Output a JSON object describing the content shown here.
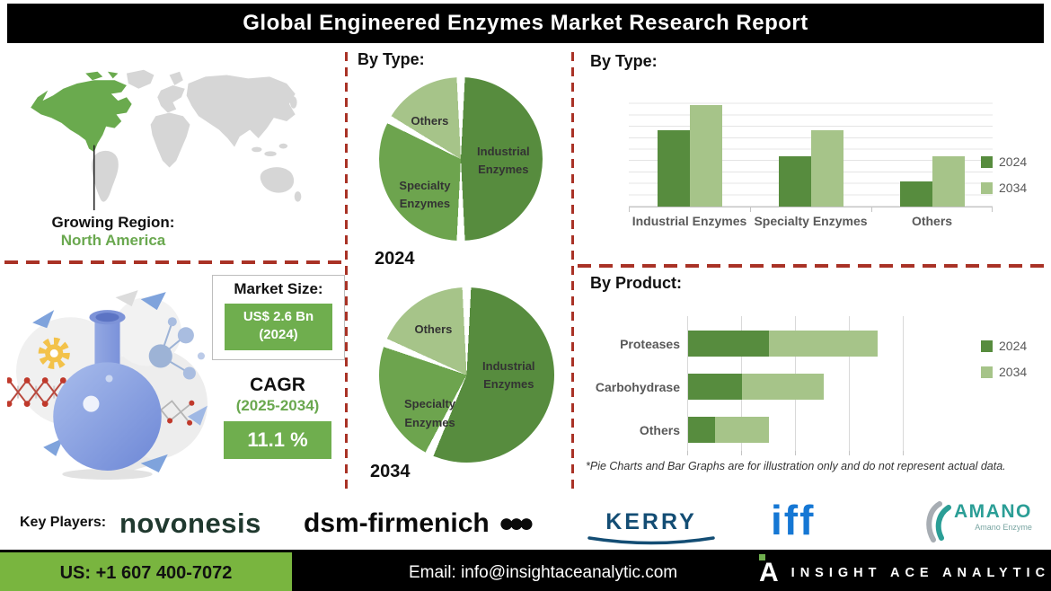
{
  "header": {
    "title": "Global Engineered Enzymes Market Research Report"
  },
  "map_section": {
    "growing_region_label": "Growing Region:",
    "growing_region_value": "North America"
  },
  "market_stats": {
    "market_size_label": "Market Size:",
    "market_size_value": "US$ 2.6 Bn",
    "market_size_year": "(2024)",
    "cagr_label": "CAGR",
    "cagr_period": "(2025-2034)",
    "cagr_value": "11.1 %"
  },
  "chart_data": [
    {
      "type": "pie",
      "title": "By Type:",
      "year_label": "2024",
      "labels": [
        "Industrial Enzymes",
        "Specialty Enzymes",
        "Others"
      ],
      "values": [
        50,
        33,
        17
      ],
      "colors": [
        "#578c3e",
        "#6da44e",
        "#a6c489"
      ]
    },
    {
      "type": "pie",
      "title": "By Type:",
      "year_label": "2034",
      "labels": [
        "Industrial Enzymes",
        "Specialty Enzymes",
        "Others"
      ],
      "values": [
        57,
        24,
        19
      ],
      "colors": [
        "#578c3e",
        "#6da44e",
        "#a6c489"
      ]
    },
    {
      "type": "bar",
      "title": "By Type:",
      "categories": [
        "Industrial Enzymes",
        "Specialty Enzymes",
        "Others"
      ],
      "series": [
        {
          "name": "2024",
          "values": [
            6.7,
            4.4,
            2.2
          ],
          "color": "#578c3e"
        },
        {
          "name": "2034",
          "values": [
            8.9,
            6.7,
            4.4
          ],
          "color": "#a6c489"
        }
      ],
      "ylim": [
        0,
        10
      ],
      "grid": true,
      "axis_labels_shown": false,
      "legend_position": "right"
    },
    {
      "type": "bar",
      "orientation": "horizontal",
      "stacked": true,
      "title": "By Product:",
      "categories": [
        "Proteases",
        "Carbohydrase",
        "Others"
      ],
      "series": [
        {
          "name": "2024",
          "values": [
            1.5,
            1.0,
            0.5
          ],
          "color": "#578c3e"
        },
        {
          "name": "2034",
          "values": [
            2.0,
            1.5,
            1.0
          ],
          "color": "#a6c489"
        }
      ],
      "xlim": [
        0,
        4
      ],
      "grid": true,
      "axis_labels_shown": false,
      "legend_position": "right"
    }
  ],
  "footnote": "*Pie Charts and Bar Graphs are for illustration only and do not represent actual data.",
  "key_players": {
    "label": "Key Players:",
    "companies": [
      "novonesis",
      "dsm-firmenich",
      "KERRY",
      "iff",
      "AMANO"
    ],
    "dsm_dots": "●●●",
    "amano_subtitle": "Amano Enzyme"
  },
  "footer": {
    "phone": "US: +1 607 400-7072",
    "email": "Email: info@insightaceanalytic.com",
    "brand_letter": "A",
    "brand": "INSIGHT ACE ANALYTIC"
  },
  "colors": {
    "banner_bg": "#000000",
    "divider_red": "#a93226",
    "dark_green_2024": "#578c3e",
    "mid_green": "#6da44e",
    "light_green_2034": "#a6c489",
    "stat_box_green": "#6fae4e",
    "accent_green_text": "#6aa84f",
    "footer_green": "#79b53f",
    "map_gray": "#d6d6d6",
    "map_highlight_green": "#6aaa4e",
    "novonesis_green": "#20392f",
    "kerry_blue": "#134d74",
    "iff_blue": "#1577d4",
    "amano_teal": "#2b9e96"
  }
}
